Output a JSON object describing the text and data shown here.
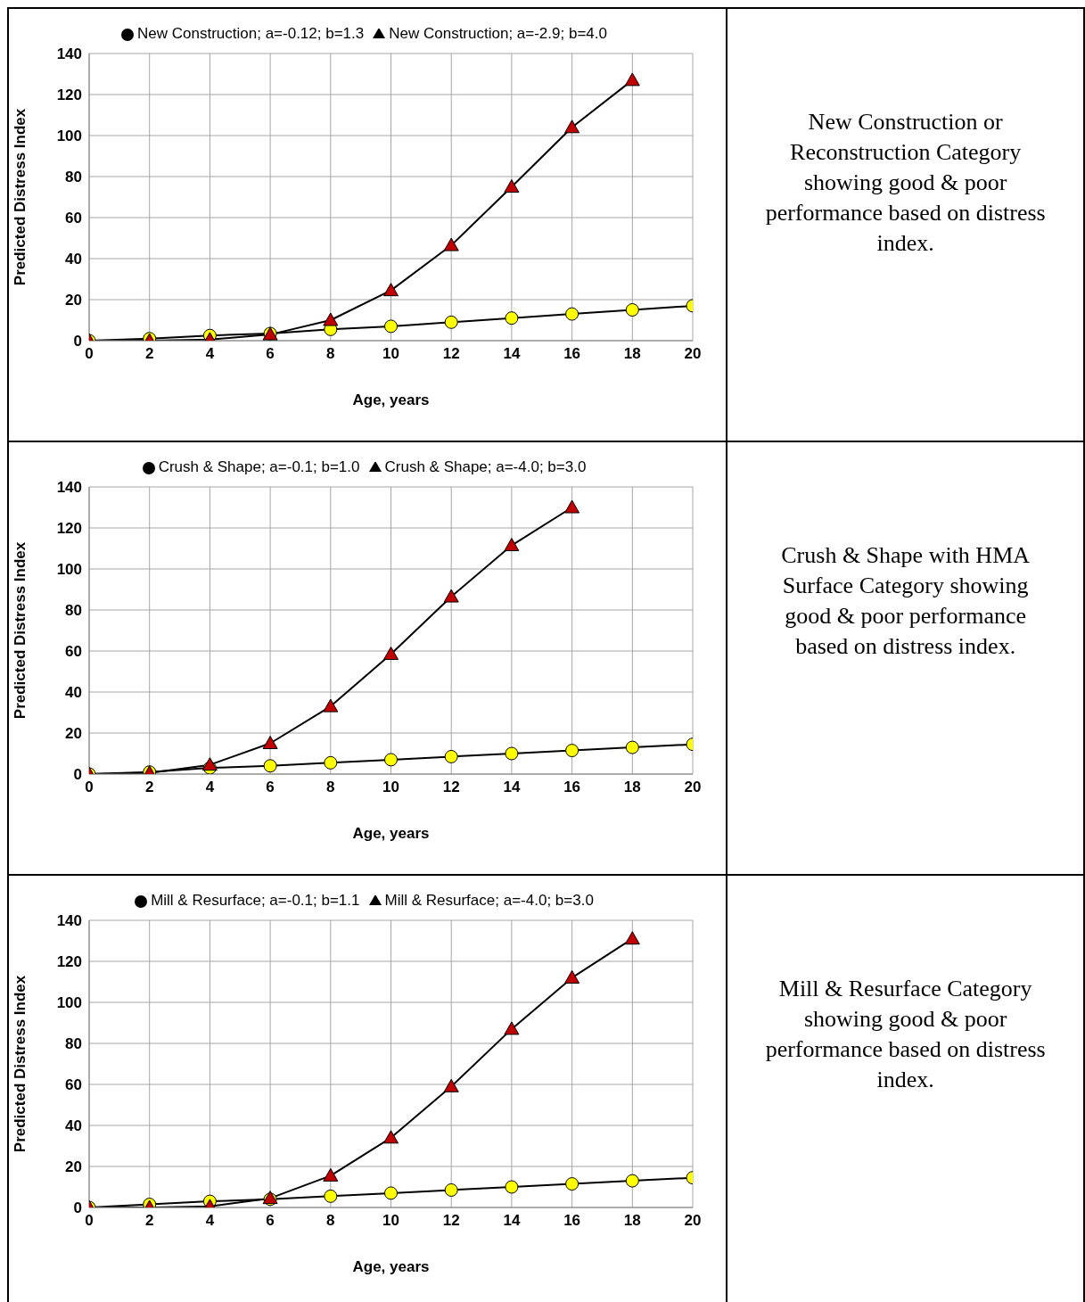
{
  "chart_data": [
    {
      "type": "line",
      "xlabel": "Age, years",
      "ylabel": "Predicted Distress Index",
      "x": [
        0,
        2,
        4,
        6,
        8,
        10,
        12,
        14,
        16,
        18,
        20
      ],
      "xlim": [
        0,
        20
      ],
      "xticks": [
        0,
        2,
        4,
        6,
        8,
        10,
        12,
        14,
        16,
        18,
        20
      ],
      "ylim": [
        0,
        140
      ],
      "yticks": [
        0,
        20,
        40,
        60,
        80,
        100,
        120,
        140
      ],
      "grid": true,
      "legend": "top",
      "series": [
        {
          "name": "New Construction; a=-0.12; b=1.3",
          "color": "#ffff00",
          "marker": "circle",
          "values": [
            0,
            1,
            2.5,
            3.5,
            5.5,
            7,
            9,
            11,
            13,
            15,
            17
          ]
        },
        {
          "name": "New Construction; a=-2.9; b=4.0",
          "color": "#c00000",
          "marker": "triangle",
          "values": [
            0,
            0,
            0.5,
            3,
            10,
            24.5,
            46.5,
            75,
            104,
            127,
            null
          ]
        }
      ]
    },
    {
      "type": "other",
      "annotations": [
        "New Construction or Reconstruction Category showing good & poor performance based on distress index."
      ]
    },
    {
      "type": "line",
      "xlabel": "Age, years",
      "ylabel": "Predicted Distress Index",
      "x": [
        0,
        2,
        4,
        6,
        8,
        10,
        12,
        14,
        16,
        18,
        20
      ],
      "xlim": [
        0,
        20
      ],
      "xticks": [
        0,
        2,
        4,
        6,
        8,
        10,
        12,
        14,
        16,
        18,
        20
      ],
      "ylim": [
        0,
        140
      ],
      "yticks": [
        0,
        20,
        40,
        60,
        80,
        100,
        120,
        140
      ],
      "grid": true,
      "legend": "top",
      "series": [
        {
          "name": "Crush & Shape; a=-0.1; b=1.0",
          "color": "#ffff00",
          "marker": "circle",
          "values": [
            0,
            1,
            3,
            4,
            5.5,
            7,
            8.5,
            10,
            11.5,
            13,
            14.5
          ]
        },
        {
          "name": "Crush & Shape; a=-4.0; b=3.0",
          "color": "#c00000",
          "marker": "triangle",
          "values": [
            0,
            0.5,
            4.5,
            15,
            33,
            58.5,
            86.5,
            111.5,
            130,
            null,
            null
          ]
        }
      ]
    },
    {
      "type": "other",
      "annotations": [
        "Crush & Shape with HMA Surface Category showing good & poor performance based on distress index."
      ]
    },
    {
      "type": "line",
      "xlabel": "Age, years",
      "ylabel": "Predicted Distress Index",
      "x": [
        0,
        2,
        4,
        6,
        8,
        10,
        12,
        14,
        16,
        18,
        20
      ],
      "xlim": [
        0,
        20
      ],
      "xticks": [
        0,
        2,
        4,
        6,
        8,
        10,
        12,
        14,
        16,
        18,
        20
      ],
      "ylim": [
        0,
        140
      ],
      "yticks": [
        0,
        20,
        40,
        60,
        80,
        100,
        120,
        140
      ],
      "grid": true,
      "legend": "top",
      "series": [
        {
          "name": "Mill & Resurface; a=-0.1; b=1.1",
          "color": "#ffff00",
          "marker": "circle",
          "values": [
            0,
            1.5,
            3,
            4,
            5.5,
            7,
            8.5,
            10,
            11.5,
            13,
            14.5
          ]
        },
        {
          "name": "Mill & Resurface; a=-4.0; b=3.0",
          "color": "#c00000",
          "marker": "triangle",
          "values": [
            0,
            0,
            0.5,
            4.5,
            15.5,
            34,
            59,
            87,
            112,
            131,
            null
          ]
        }
      ]
    },
    {
      "type": "other",
      "annotations": [
        "Mill & Resurface Category showing good & poor performance based on distress index."
      ]
    }
  ]
}
